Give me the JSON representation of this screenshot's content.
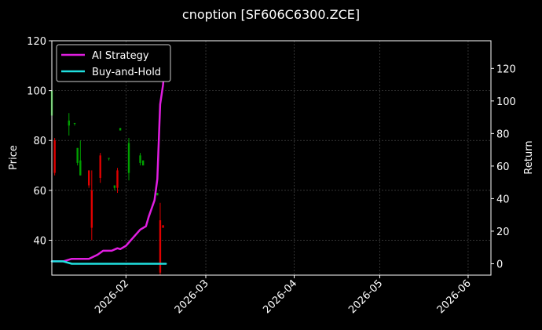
{
  "chart_data": {
    "type": "candlestick+line",
    "title": "cnoption [SF606C6300.ZCE]",
    "ylabel_left": "Price",
    "ylabel_right": "Return",
    "grid": true,
    "legend_position": "top-left",
    "xlim": [
      "2026-01-06",
      "2026-06-09"
    ],
    "ylim_left": [
      26,
      120
    ],
    "ylim_right": [
      -7,
      137
    ],
    "x_ticks": [
      "2026-02",
      "2026-03",
      "2026-04",
      "2026-05",
      "2026-06"
    ],
    "y_ticks_left": [
      40,
      60,
      80,
      100,
      120
    ],
    "y_ticks_right": [
      0,
      20,
      40,
      60,
      80,
      100,
      120
    ],
    "colors": {
      "background": "#000000",
      "up": "#00a000",
      "down": "#e00000",
      "ai_strategy": "#e01ee0",
      "buy_and_hold": "#20e0e0",
      "grid": "#555555",
      "axis": "#ffffff"
    },
    "candles": [
      {
        "date": "2026-01-06",
        "open": 90,
        "high": 100,
        "low": 75,
        "close": 100
      },
      {
        "date": "2026-01-07",
        "open": 80,
        "high": 81,
        "low": 66,
        "close": 67
      },
      {
        "date": "2026-01-12",
        "open": 86,
        "high": 91,
        "low": 82,
        "close": 88
      },
      {
        "date": "2026-01-14",
        "open": 87,
        "high": 87,
        "low": 86,
        "close": 87
      },
      {
        "date": "2026-01-15",
        "open": 71,
        "high": 77,
        "low": 70,
        "close": 77
      },
      {
        "date": "2026-01-16",
        "open": 66,
        "high": 80,
        "low": 66,
        "close": 72
      },
      {
        "date": "2026-01-19",
        "open": 68,
        "high": 68,
        "low": 61,
        "close": 62
      },
      {
        "date": "2026-01-20",
        "open": 60,
        "high": 68,
        "low": 40,
        "close": 45
      },
      {
        "date": "2026-01-23",
        "open": 74,
        "high": 75,
        "low": 63,
        "close": 65
      },
      {
        "date": "2026-01-26",
        "open": 73,
        "high": 73,
        "low": 72,
        "close": 73
      },
      {
        "date": "2026-01-28",
        "open": 61,
        "high": 62,
        "low": 60,
        "close": 62
      },
      {
        "date": "2026-01-29",
        "open": 68,
        "high": 69,
        "low": 59,
        "close": 61
      },
      {
        "date": "2026-01-30",
        "open": 84,
        "high": 85,
        "low": 84,
        "close": 85
      },
      {
        "date": "2026-02-02",
        "open": 67,
        "high": 81,
        "low": 64,
        "close": 79
      },
      {
        "date": "2026-02-06",
        "open": 71,
        "high": 75,
        "low": 70,
        "close": 74
      },
      {
        "date": "2026-02-07",
        "open": 70,
        "high": 72,
        "low": 70,
        "close": 72
      },
      {
        "date": "2026-02-12",
        "open": 58,
        "high": 59,
        "low": 58,
        "close": 59
      },
      {
        "date": "2026-02-13",
        "open": 48,
        "high": 55,
        "low": 26,
        "close": 27
      },
      {
        "date": "2026-02-14",
        "open": 46,
        "high": 46,
        "low": 45,
        "close": 45
      }
    ],
    "series": [
      {
        "name": "AI Strategy",
        "axis": "right",
        "points": [
          {
            "x": "2026-01-06",
            "y": 1.5
          },
          {
            "x": "2026-01-10",
            "y": 1.5
          },
          {
            "x": "2026-01-13",
            "y": 3
          },
          {
            "x": "2026-01-16",
            "y": 3
          },
          {
            "x": "2026-01-19",
            "y": 3
          },
          {
            "x": "2026-01-22",
            "y": 5.5
          },
          {
            "x": "2026-01-24",
            "y": 8
          },
          {
            "x": "2026-01-27",
            "y": 8
          },
          {
            "x": "2026-01-29",
            "y": 9.5
          },
          {
            "x": "2026-01-30",
            "y": 9
          },
          {
            "x": "2026-02-01",
            "y": 11
          },
          {
            "x": "2026-02-03",
            "y": 15
          },
          {
            "x": "2026-02-06",
            "y": 21
          },
          {
            "x": "2026-02-08",
            "y": 23
          },
          {
            "x": "2026-02-09",
            "y": 29
          },
          {
            "x": "2026-02-11",
            "y": 39
          },
          {
            "x": "2026-02-12",
            "y": 52
          },
          {
            "x": "2026-02-13",
            "y": 98
          },
          {
            "x": "2026-02-14",
            "y": 110
          },
          {
            "x": "2026-02-15",
            "y": 133
          }
        ]
      },
      {
        "name": "Buy-and-Hold",
        "axis": "right",
        "points": [
          {
            "x": "2026-01-06",
            "y": 1.5
          },
          {
            "x": "2026-01-10",
            "y": 1.5
          },
          {
            "x": "2026-01-13",
            "y": 0
          },
          {
            "x": "2026-02-15",
            "y": 0
          }
        ]
      }
    ]
  }
}
